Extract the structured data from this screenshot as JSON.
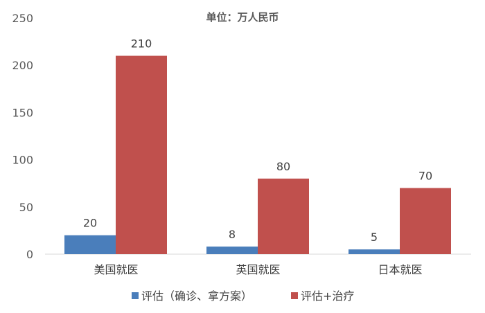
{
  "chart_data": {
    "type": "bar",
    "title": "单位：万人民币",
    "categories": [
      "美国就医",
      "英国就医",
      "日本就医"
    ],
    "series": [
      {
        "name": "评估（确诊、拿方案）",
        "values": [
          20,
          8,
          5
        ],
        "color": "#4A7EBB"
      },
      {
        "name": "评估+治疗",
        "values": [
          210,
          80,
          70
        ],
        "color": "#C0504D"
      }
    ],
    "ylim": [
      0,
      250
    ],
    "yticks": [
      0,
      50,
      100,
      150,
      200,
      250
    ],
    "grid": false,
    "legend": "bottom"
  }
}
